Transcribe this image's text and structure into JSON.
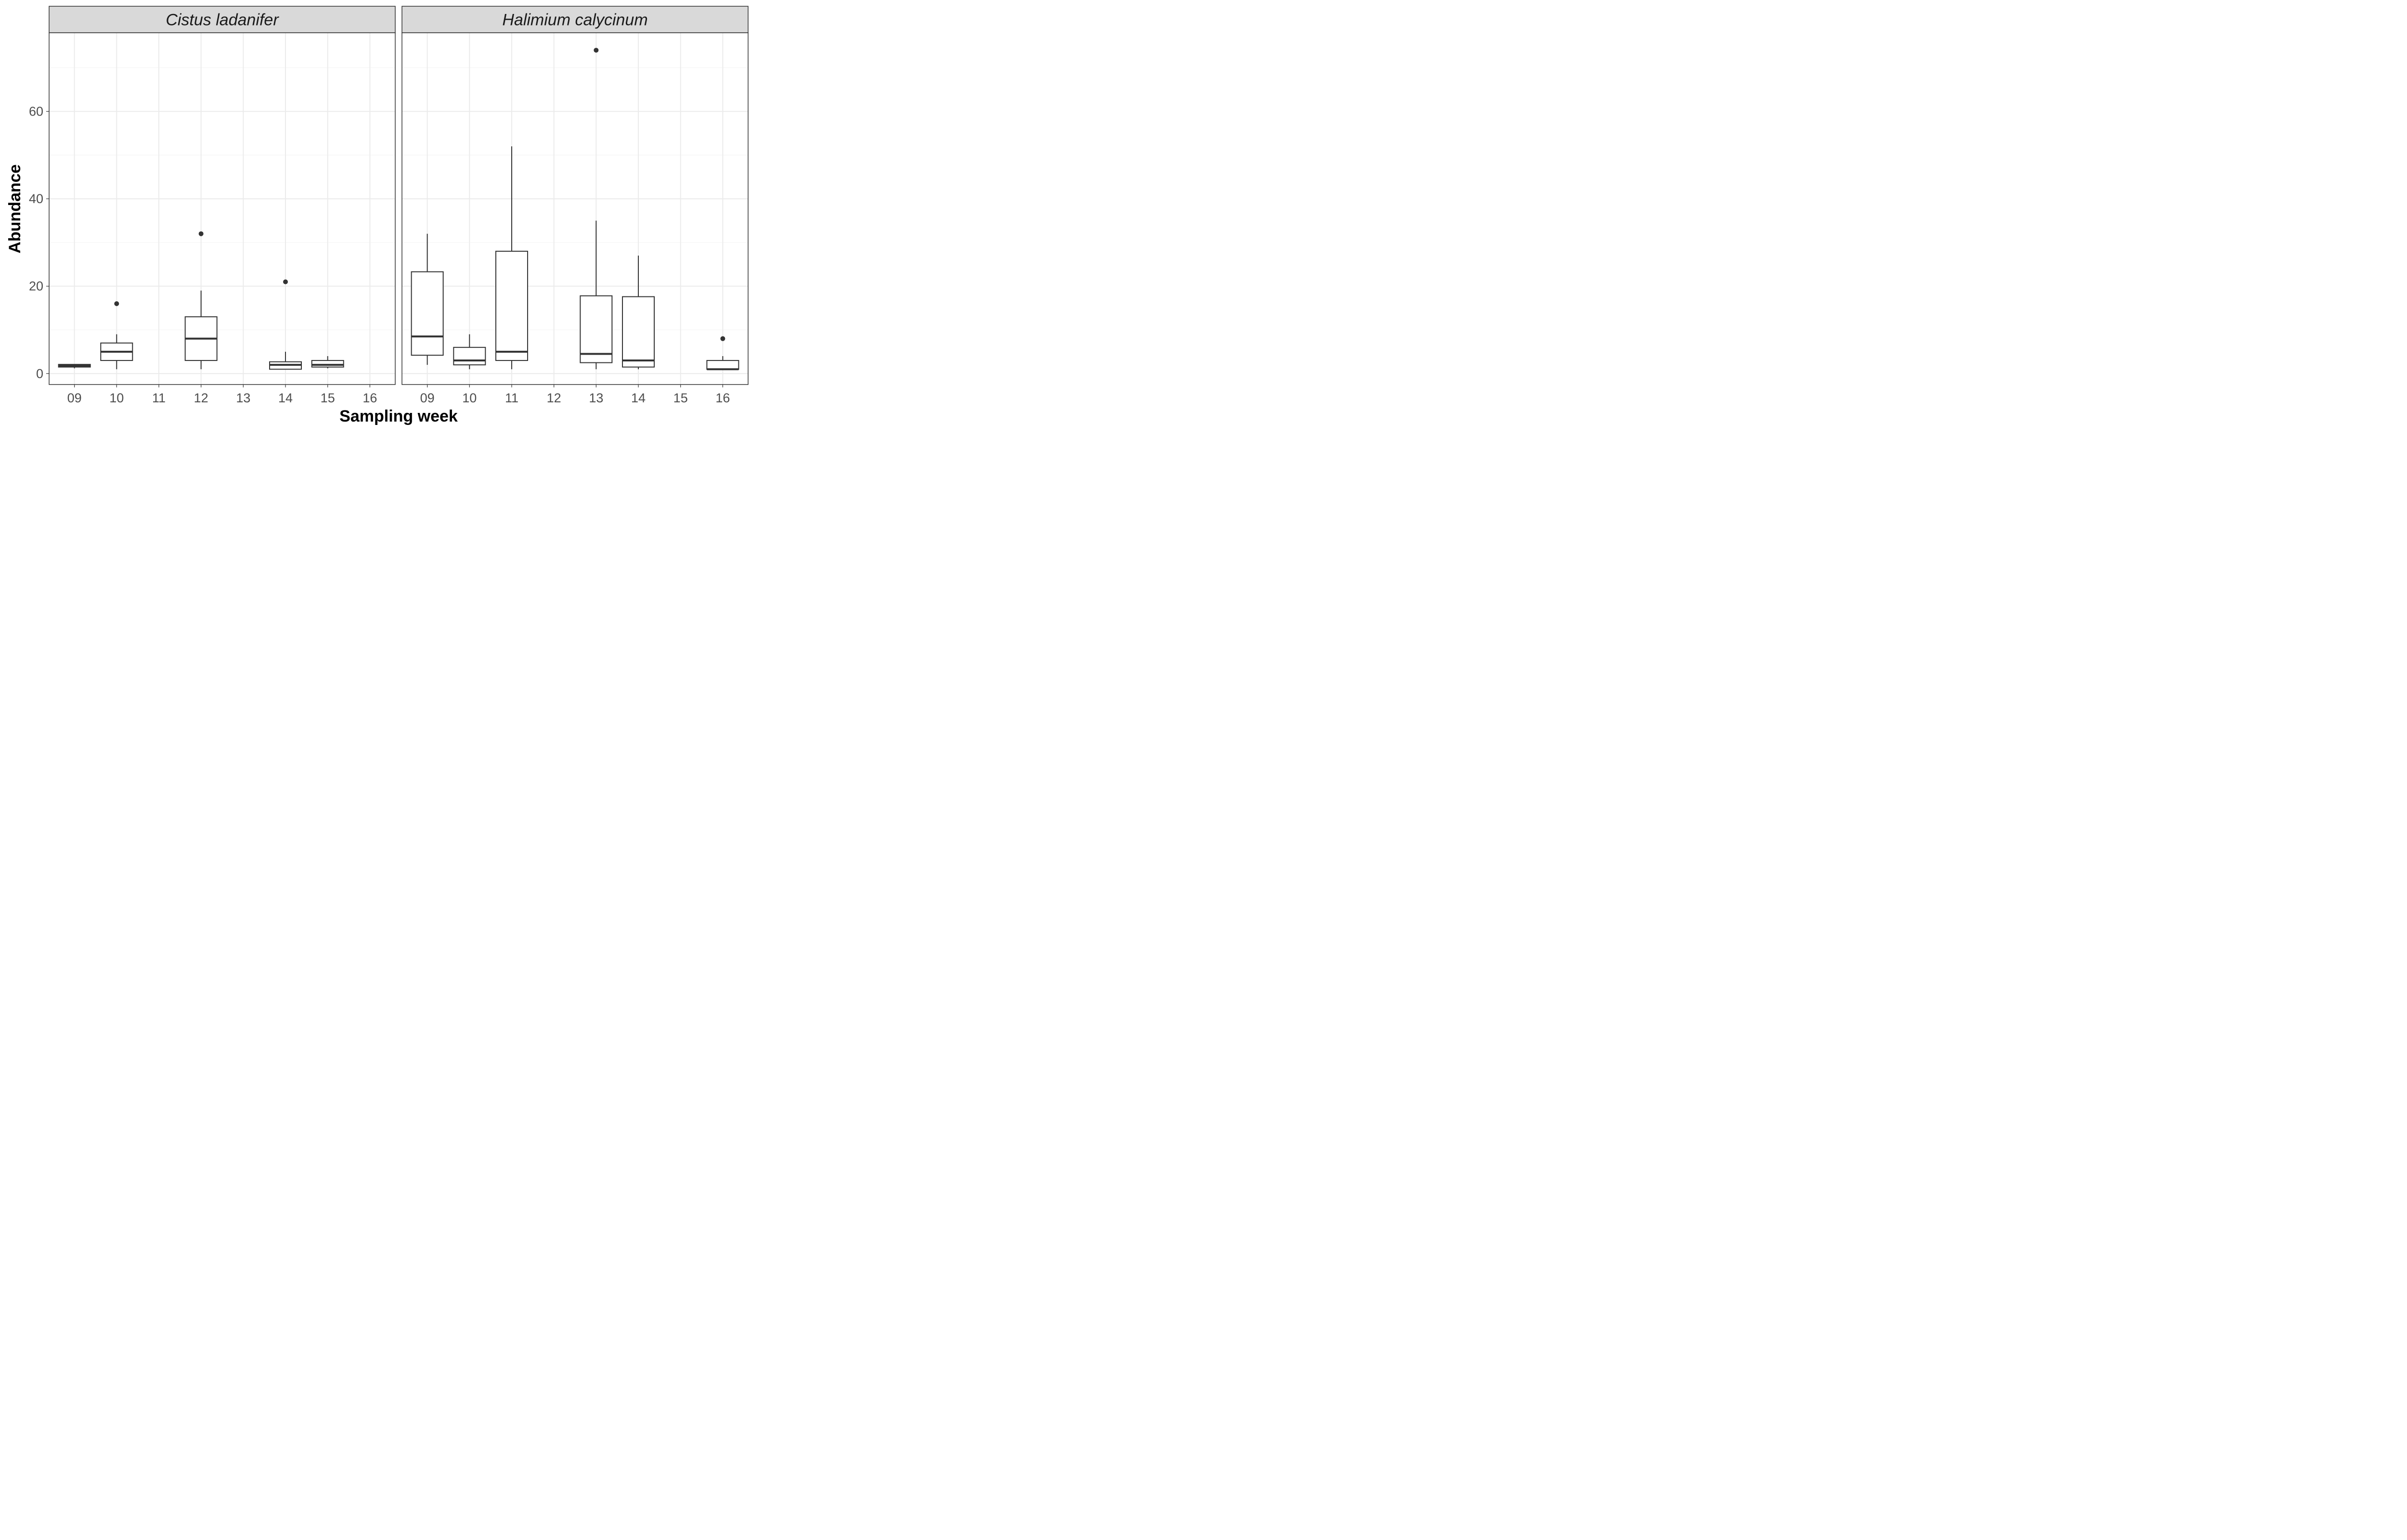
{
  "chart_data": {
    "type": "box",
    "xlabel": "Sampling week",
    "ylabel": "Abundance",
    "ylim": [
      -2.5,
      78
    ],
    "y_ticks": [
      0,
      20,
      40,
      60
    ],
    "x_ticks": [
      "09",
      "10",
      "11",
      "12",
      "13",
      "14",
      "15",
      "16"
    ],
    "grid": true,
    "facets": [
      {
        "name": "Cistus ladanifer",
        "boxes": [
          {
            "week": "09",
            "lower_whisker": 1.2,
            "q1": 1.5,
            "median": 1.8,
            "q3": 2.1,
            "upper_whisker": 2.1,
            "outliers": []
          },
          {
            "week": "10",
            "lower_whisker": 1,
            "q1": 3,
            "median": 5,
            "q3": 7,
            "upper_whisker": 9,
            "outliers": [
              16
            ]
          },
          {
            "week": "12",
            "lower_whisker": 1,
            "q1": 3,
            "median": 8,
            "q3": 13,
            "upper_whisker": 19,
            "outliers": [
              32
            ]
          },
          {
            "week": "14",
            "lower_whisker": 1,
            "q1": 1,
            "median": 2,
            "q3": 2.7,
            "upper_whisker": 5,
            "outliers": [
              21
            ]
          },
          {
            "week": "15",
            "lower_whisker": 1.2,
            "q1": 1.5,
            "median": 2,
            "q3": 3,
            "upper_whisker": 4,
            "outliers": []
          }
        ]
      },
      {
        "name": "Halimium calycinum",
        "boxes": [
          {
            "week": "09",
            "lower_whisker": 2,
            "q1": 4.2,
            "median": 8.5,
            "q3": 23.3,
            "upper_whisker": 32,
            "outliers": []
          },
          {
            "week": "10",
            "lower_whisker": 1,
            "q1": 2,
            "median": 3,
            "q3": 6,
            "upper_whisker": 9,
            "outliers": []
          },
          {
            "week": "11",
            "lower_whisker": 1,
            "q1": 3,
            "median": 5,
            "q3": 28,
            "upper_whisker": 52,
            "outliers": []
          },
          {
            "week": "13",
            "lower_whisker": 1,
            "q1": 2.5,
            "median": 4.5,
            "q3": 17.8,
            "upper_whisker": 35,
            "outliers": [
              74
            ]
          },
          {
            "week": "14",
            "lower_whisker": 1,
            "q1": 1.5,
            "median": 3,
            "q3": 17.6,
            "upper_whisker": 27,
            "outliers": []
          },
          {
            "week": "16",
            "lower_whisker": 1,
            "q1": 1,
            "median": 1,
            "q3": 3,
            "upper_whisker": 4,
            "outliers": [
              8
            ]
          }
        ]
      }
    ]
  },
  "colors": {
    "strip_fill": "#d9d9d9",
    "panel_border": "#333333",
    "grid_major": "#ebebeb",
    "grid_minor": "#f5f5f5",
    "box_line": "#333333",
    "outlier": "#333333"
  }
}
